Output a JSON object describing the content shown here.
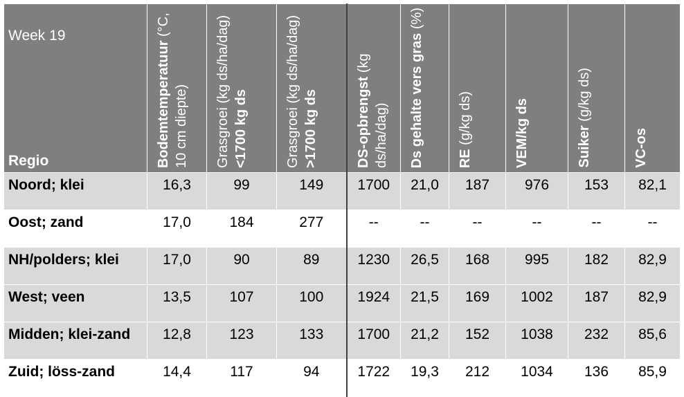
{
  "header": {
    "week": "Week 19",
    "region_label": "Regio",
    "columns": [
      {
        "bold": "Bodemtemperatuur",
        "normal": "(°C, 10 cm diepte)"
      },
      {
        "normal": "Grasgroei (kg ds/ha/dag)",
        "bold": "<1700 kg ds"
      },
      {
        "normal": "Grasgroei (kg ds/ha/dag)",
        "bold": ">1700 kg ds"
      },
      {
        "bold": "DS-opbrengst",
        "normal": "(kg ds/ha/dag)"
      },
      {
        "bold": "Ds gehalte vers gras",
        "normal": "(%)"
      },
      {
        "bold": "RE",
        "normal": "(g/kg ds)"
      },
      {
        "bold": "VEM/kg ds",
        "normal": ""
      },
      {
        "bold": "Suiker",
        "normal": "(g/kg ds)"
      },
      {
        "bold": "VC-os",
        "normal": ""
      }
    ]
  },
  "rows": [
    {
      "region": "Noord; klei",
      "values": [
        "16,3",
        "99",
        "149",
        "1700",
        "21,0",
        "187",
        "976",
        "153",
        "82,1"
      ]
    },
    {
      "region": "Oost; zand",
      "values": [
        "17,0",
        "184",
        "277",
        "--",
        "--",
        "--",
        "--",
        "--",
        "--"
      ]
    },
    {
      "region": "NH/polders; klei",
      "values": [
        "17,0",
        "90",
        "89",
        "1230",
        "26,5",
        "168",
        "995",
        "182",
        "82,9"
      ]
    },
    {
      "region": "West; veen",
      "values": [
        "13,5",
        "107",
        "100",
        "1924",
        "21,5",
        "169",
        "1002",
        "187",
        "82,9"
      ]
    },
    {
      "region": "Midden; klei-zand",
      "values": [
        "12,8",
        "123",
        "133",
        "1700",
        "21,2",
        "152",
        "1038",
        "232",
        "85,6"
      ]
    },
    {
      "region": "Zuid; löss-zand",
      "values": [
        "14,4",
        "117",
        "94",
        "1722",
        "19,3",
        "212",
        "1034",
        "136",
        "85,9"
      ]
    }
  ]
}
